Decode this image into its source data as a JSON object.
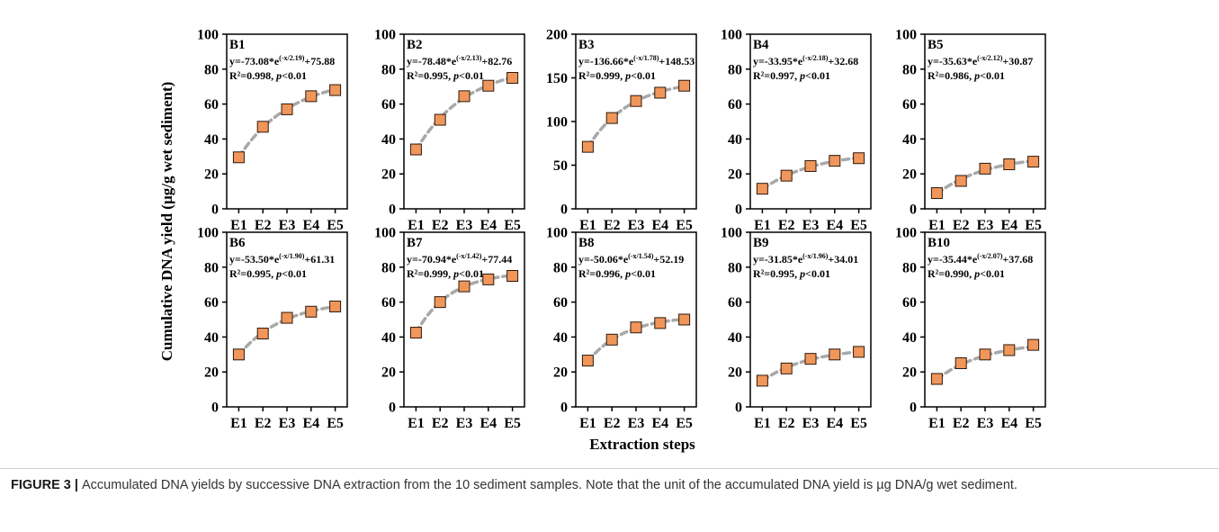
{
  "caption": {
    "label": "FIGURE 3",
    "separator": " | ",
    "text": "Accumulated DNA yields by successive DNA extraction from the 10 sediment samples. Note that the unit of the accumulated DNA yield is µg DNA/g wet sediment."
  },
  "colors": {
    "marker_fill": "#f0965a",
    "marker_stroke": "#2b1a10",
    "fit_line": "#a8a8a8",
    "axis": "#000000"
  },
  "chart_data": {
    "type": "scatter",
    "xlabel": "Extraction steps",
    "ylabel": "Cumulative DNA yield (µg/g wet sediment)",
    "categories": [
      "E1",
      "E2",
      "E3",
      "E4",
      "E5"
    ],
    "grid": false,
    "panels": [
      {
        "name": "B1",
        "values": [
          29.5,
          47,
          57,
          64.5,
          68
        ],
        "ylim": [
          0,
          100
        ],
        "yticks": [
          0,
          20,
          40,
          60,
          80,
          100
        ],
        "fit": {
          "a": -73.08,
          "b": 2.19,
          "c": 75.88
        },
        "equation": "y=-73.08*e",
        "exponent": "(-x/2.19)",
        "constant": "+75.88",
        "r2": "R²=0.998, ",
        "p": "p",
        "p_rest": "<0.01"
      },
      {
        "name": "B2",
        "values": [
          34,
          51,
          64.5,
          70.5,
          75
        ],
        "ylim": [
          0,
          100
        ],
        "yticks": [
          0,
          20,
          40,
          60,
          80,
          100
        ],
        "fit": {
          "a": -78.48,
          "b": 2.13,
          "c": 82.76
        },
        "equation": "y=-78.48*e",
        "exponent": "(-x/2.13)",
        "constant": "+82.76",
        "r2": "R²=0.995, ",
        "p": "p",
        "p_rest": "<0.01"
      },
      {
        "name": "B3",
        "values": [
          71,
          104,
          123.5,
          133,
          141
        ],
        "ylim": [
          0,
          200
        ],
        "yticks": [
          0,
          50,
          100,
          150,
          200
        ],
        "fit": {
          "a": -136.66,
          "b": 1.78,
          "c": 148.53
        },
        "equation": "y=-136.66*e",
        "exponent": "(-x/1.78)",
        "constant": "+148.53",
        "r2": "R²=0.999, ",
        "p": "p",
        "p_rest": "<0.01"
      },
      {
        "name": "B4",
        "values": [
          11.5,
          19,
          24.5,
          27.5,
          29
        ],
        "ylim": [
          0,
          100
        ],
        "yticks": [
          0,
          20,
          40,
          60,
          80,
          100
        ],
        "fit": {
          "a": -33.95,
          "b": 2.18,
          "c": 32.68
        },
        "equation": "y=-33.95*e",
        "exponent": "(-x/2.18)",
        "constant": "+32.68",
        "r2": "R²=0.997, ",
        "p": "p",
        "p_rest": "<0.01"
      },
      {
        "name": "B5",
        "values": [
          9,
          16,
          23,
          25.5,
          27
        ],
        "ylim": [
          0,
          100
        ],
        "yticks": [
          0,
          20,
          40,
          60,
          80,
          100
        ],
        "fit": {
          "a": -35.63,
          "b": 2.12,
          "c": 30.87
        },
        "equation": "y=-35.63*e",
        "exponent": "(-x/2.12)",
        "constant": "+30.87",
        "r2": "R²=0.986, ",
        "p": "p",
        "p_rest": "<0.01"
      },
      {
        "name": "B6",
        "values": [
          30,
          42,
          51,
          54.5,
          57.5
        ],
        "ylim": [
          0,
          100
        ],
        "yticks": [
          0,
          20,
          40,
          60,
          80,
          100
        ],
        "fit": {
          "a": -53.5,
          "b": 1.9,
          "c": 61.31
        },
        "equation": "y=-53.50*e",
        "exponent": "(-x/1.90)",
        "constant": "+61.31",
        "r2": "R²=0.995, ",
        "p": "p",
        "p_rest": "<0.01"
      },
      {
        "name": "B7",
        "values": [
          42.5,
          60,
          69,
          73,
          75
        ],
        "ylim": [
          0,
          100
        ],
        "yticks": [
          0,
          20,
          40,
          60,
          80,
          100
        ],
        "fit": {
          "a": -70.94,
          "b": 1.42,
          "c": 77.44
        },
        "equation": "y=-70.94*e",
        "exponent": "(-x/1.42)",
        "constant": "+77.44",
        "r2": "R²=0.999, ",
        "p": "p",
        "p_rest": "<0.01"
      },
      {
        "name": "B8",
        "values": [
          26.5,
          38.5,
          45.5,
          48,
          50
        ],
        "ylim": [
          0,
          100
        ],
        "yticks": [
          0,
          20,
          40,
          60,
          80,
          100
        ],
        "fit": {
          "a": -50.06,
          "b": 1.54,
          "c": 52.19
        },
        "equation": "y=-50.06*e",
        "exponent": "(-x/1.54)",
        "constant": "+52.19",
        "r2": "R²=0.996, ",
        "p": "p",
        "p_rest": "<0.01"
      },
      {
        "name": "B9",
        "values": [
          15,
          22,
          27.5,
          30,
          31.5
        ],
        "ylim": [
          0,
          100
        ],
        "yticks": [
          0,
          20,
          40,
          60,
          80,
          100
        ],
        "fit": {
          "a": -31.85,
          "b": 1.96,
          "c": 34.01
        },
        "equation": "y=-31.85*e",
        "exponent": "(-x/1.96)",
        "constant": "+34.01",
        "r2": "R²=0.995, ",
        "p": "p",
        "p_rest": "<0.01"
      },
      {
        "name": "B10",
        "values": [
          16,
          25,
          30,
          32.5,
          35.5
        ],
        "ylim": [
          0,
          100
        ],
        "yticks": [
          0,
          20,
          40,
          60,
          80,
          100
        ],
        "fit": {
          "a": -35.44,
          "b": 2.07,
          "c": 37.68
        },
        "equation": "y=-35.44*e",
        "exponent": "(-x/2.07)",
        "constant": "+37.68",
        "r2": "R²=0.990, ",
        "p": "p",
        "p_rest": "<0.01"
      }
    ]
  }
}
